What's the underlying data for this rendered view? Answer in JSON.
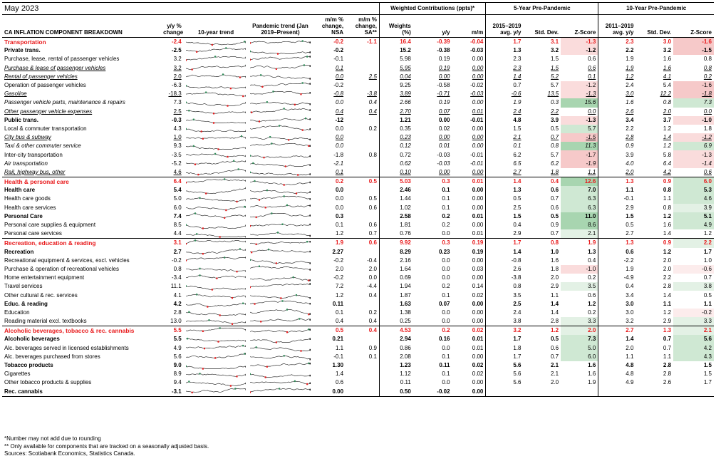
{
  "title": "May 2023",
  "groups": {
    "weighted": "Weighted Contributions (ppts)*",
    "five": "5-Year Pre-Pandemic",
    "ten": "10-Year Pre-Pandemic"
  },
  "headers": {
    "component": "CA INFLATION COMPONENT BREAKDOWN",
    "yy": "y/y % change",
    "trend10": "10-year trend",
    "pandemic": "Pandemic trend (Jan 2019–Present)",
    "mm_nsa": "m/m % change, NSA",
    "mm_sa": "m/m % change, SA**",
    "weights": "Weights (%)",
    "w_yy": "y/y",
    "w_mm": "m/m",
    "avg5": "2015–2019 avg. y/y",
    "sd5": "Std. Dev.",
    "z5": "Z-Score",
    "avg10": "2011–2019 avg. y/y",
    "sd10": "Std. Dev.",
    "z10": "Z-Score"
  },
  "colors": {
    "red": "#e8191b",
    "green": "#2e8b57",
    "z_pos_light": "#e6f3e8",
    "z_pos_dark": "#7fc28c",
    "z_neg_light": "#fbe3e3",
    "z_neg_dark": "#f3a7a7"
  },
  "rows": [
    {
      "label": "Transportation",
      "style": "cat",
      "yy": "-2.4",
      "nsa": "-0.2",
      "sa": "-1.1",
      "w": "16.4",
      "wyy": "-0.39",
      "wmm": "-0.04",
      "a5": "1.7",
      "s5": "3.1",
      "z5": "-1.3",
      "a10": "2.3",
      "s10": "3.0",
      "z10": "-1.6",
      "z5v": -1.3,
      "z10v": -1.6
    },
    {
      "label": "Private trans.",
      "style": "sub",
      "yy": "-2.5",
      "nsa": "-0.2",
      "sa": "",
      "w": "15.2",
      "wyy": "-0.38",
      "wmm": "-0.03",
      "a5": "1.3",
      "s5": "3.2",
      "z5": "-1.2",
      "a10": "2.2",
      "s10": "3.2",
      "z10": "-1.5",
      "z5v": -1.2,
      "z10v": -1.5
    },
    {
      "label": "Purchase, lease, rental of passenger vehicles",
      "style": "",
      "yy": "3.2",
      "nsa": "-0.1",
      "sa": "",
      "w": "5.98",
      "wyy": "0.19",
      "wmm": "0.00",
      "a5": "2.3",
      "s5": "1.5",
      "z5": "0.6",
      "a10": "1.9",
      "s10": "1.6",
      "z10": "0.8",
      "z5v": 0.6,
      "z10v": 0.8
    },
    {
      "label": "Purchase & lease of passenger vehicles",
      "style": "itul",
      "yy": "3.2",
      "nsa": "0.1",
      "sa": "",
      "w": "5.95",
      "wyy": "0.19",
      "wmm": "0.00",
      "a5": "2.3",
      "s5": "1.5",
      "z5": "0.6",
      "a10": "1.9",
      "s10": "1.6",
      "z10": "0.8",
      "z5v": 0.6,
      "z10v": 0.8
    },
    {
      "label": "Rental of passenger vehicles",
      "style": "itul",
      "yy": "2.0",
      "nsa": "0.0",
      "sa": "2.5",
      "w": "0.04",
      "wyy": "0.00",
      "wmm": "0.00",
      "a5": "1.4",
      "s5": "5.2",
      "z5": "0.1",
      "a10": "1.2",
      "s10": "4.1",
      "z10": "0.2",
      "z5v": 0.1,
      "z10v": 0.2
    },
    {
      "label": "Operation of passenger vehicles",
      "style": "",
      "yy": "-6.3",
      "nsa": "-0.2",
      "sa": "",
      "w": "9.25",
      "wyy": "-0.58",
      "wmm": "-0.02",
      "a5": "0.7",
      "s5": "5.7",
      "z5": "-1.2",
      "a10": "2.4",
      "s10": "5.4",
      "z10": "-1.6",
      "z5v": -1.2,
      "z10v": -1.6
    },
    {
      "label": "Gasoline",
      "style": "itul",
      "yy": "-18.3",
      "nsa": "-0.8",
      "sa": "-3.8",
      "w": "3.89",
      "wyy": "-0.71",
      "wmm": "-0.03",
      "a5": "-0.6",
      "s5": "13.5",
      "z5": "-1.3",
      "a10": "3.0",
      "s10": "12.2",
      "z10": "-1.8",
      "z5v": -1.3,
      "z10v": -1.8
    },
    {
      "label": "Passenger vehicle parts, maintenance & repairs",
      "style": "it",
      "yy": "7.3",
      "nsa": "0.0",
      "sa": "0.4",
      "w": "2.66",
      "wyy": "0.19",
      "wmm": "0.00",
      "a5": "1.9",
      "s5": "0.3",
      "z5": "15.6",
      "a10": "1.6",
      "s10": "0.8",
      "z10": "7.3",
      "z5v": 15.6,
      "z10v": 7.3
    },
    {
      "label": "Other passenger vehicle expenses",
      "style": "itul",
      "yy": "2.5",
      "nsa": "0.4",
      "sa": "0.4",
      "w": "2.70",
      "wyy": "0.07",
      "wmm": "0.01",
      "a5": "2.4",
      "s5": "2.2",
      "z5": "0.0",
      "a10": "2.6",
      "s10": "2.0",
      "z10": "0.0",
      "z5v": 0.0,
      "z10v": 0.0
    },
    {
      "label": "Public trans.",
      "style": "sub",
      "yy": "-0.3",
      "nsa": "-12",
      "sa": "",
      "w": "1.21",
      "wyy": "0.00",
      "wmm": "-0.01",
      "a5": "4.8",
      "s5": "3.9",
      "z5": "-1.3",
      "a10": "3.4",
      "s10": "3.7",
      "z10": "-1.0",
      "z5v": -1.3,
      "z10v": -1.0
    },
    {
      "label": "Local & commuter transportation",
      "style": "",
      "yy": "4.3",
      "nsa": "0.0",
      "sa": "0.2",
      "w": "0.35",
      "wyy": "0.02",
      "wmm": "0.00",
      "a5": "1.5",
      "s5": "0.5",
      "z5": "5.7",
      "a10": "2.2",
      "s10": "1.2",
      "z10": "1.8",
      "z5v": 5.7,
      "z10v": 1.8
    },
    {
      "label": "City bus & subway",
      "style": "itul",
      "yy": "1.0",
      "nsa": "0.0",
      "sa": "",
      "w": "0.23",
      "wyy": "0.00",
      "wmm": "0.00",
      "a5": "2.1",
      "s5": "0.7",
      "z5": "-1.5",
      "a10": "2.8",
      "s10": "1.4",
      "z10": "-1.2",
      "z5v": -1.5,
      "z10v": -1.2
    },
    {
      "label": "Taxi & other commuter service",
      "style": "it",
      "yy": "9.3",
      "nsa": "0.0",
      "sa": "",
      "w": "0.12",
      "wyy": "0.01",
      "wmm": "0.00",
      "a5": "0.1",
      "s5": "0.8",
      "z5": "11.3",
      "a10": "0.9",
      "s10": "1.2",
      "z10": "6.9",
      "z5v": 11.3,
      "z10v": 6.9
    },
    {
      "label": "Inter-city transportation",
      "style": "",
      "yy": "-3.5",
      "nsa": "-1.8",
      "sa": "0.8",
      "w": "0.72",
      "wyy": "-0.03",
      "wmm": "-0.01",
      "a5": "6.2",
      "s5": "5.7",
      "z5": "-1.7",
      "a10": "3.9",
      "s10": "5.8",
      "z10": "-1.3",
      "z5v": -1.7,
      "z10v": -1.3
    },
    {
      "label": "Air transportation",
      "style": "it",
      "yy": "-5.2",
      "nsa": "-2.1",
      "sa": "",
      "w": "0.62",
      "wyy": "-0.03",
      "wmm": "-0.01",
      "a5": "6.5",
      "s5": "6.2",
      "z5": "-1.9",
      "a10": "4.0",
      "s10": "6.4",
      "z10": "-1.4",
      "z5v": -1.9,
      "z10v": -1.4
    },
    {
      "label": "Rail, highway bus, other",
      "style": "itul",
      "yy": "4.6",
      "nsa": "0.1",
      "sa": "",
      "w": "0.10",
      "wyy": "0.00",
      "wmm": "0.00",
      "a5": "2.7",
      "s5": "1.8",
      "z5": "1.1",
      "a10": "2.0",
      "s10": "4.2",
      "z10": "0.6",
      "z5v": 1.1,
      "z10v": 0.6
    },
    {
      "label": "Health & personal care",
      "style": "cat",
      "yy": "6.4",
      "nsa": "0.2",
      "sa": "0.5",
      "w": "5.03",
      "wyy": "0.3",
      "wmm": "0.01",
      "a5": "1.4",
      "s5": "0.4",
      "z5": "12.6",
      "a10": "1.3",
      "s10": "0.9",
      "z10": "6.0",
      "z5v": 12.6,
      "z10v": 6.0
    },
    {
      "label": "Health care",
      "style": "sub",
      "yy": "5.4",
      "nsa": "0.0",
      "sa": "",
      "w": "2.46",
      "wyy": "0.1",
      "wmm": "0.00",
      "a5": "1.3",
      "s5": "0.6",
      "z5": "7.0",
      "a10": "1.1",
      "s10": "0.8",
      "z10": "5.3",
      "z5v": 7.0,
      "z10v": 5.3
    },
    {
      "label": "Health care goods",
      "style": "",
      "yy": "5.0",
      "nsa": "0.0",
      "sa": "0.5",
      "w": "1.44",
      "wyy": "0.1",
      "wmm": "0.00",
      "a5": "0.5",
      "s5": "0.7",
      "z5": "6.3",
      "a10": "-0.1",
      "s10": "1.1",
      "z10": "4.6",
      "z5v": 6.3,
      "z10v": 4.6
    },
    {
      "label": "Health care services",
      "style": "",
      "yy": "6.0",
      "nsa": "0.0",
      "sa": "0.6",
      "w": "1.02",
      "wyy": "0.1",
      "wmm": "0.00",
      "a5": "2.5",
      "s5": "0.6",
      "z5": "6.3",
      "a10": "2.9",
      "s10": "0.8",
      "z10": "3.9",
      "z5v": 6.3,
      "z10v": 3.9
    },
    {
      "label": "Personal Care",
      "style": "sub",
      "yy": "7.4",
      "nsa": "0.3",
      "sa": "",
      "w": "2.58",
      "wyy": "0.2",
      "wmm": "0.01",
      "a5": "1.5",
      "s5": "0.5",
      "z5": "11.0",
      "a10": "1.5",
      "s10": "1.2",
      "z10": "5.1",
      "z5v": 11.0,
      "z10v": 5.1
    },
    {
      "label": "Personal care supplies & equipment",
      "style": "",
      "yy": "8.5",
      "nsa": "0.1",
      "sa": "0.6",
      "w": "1.81",
      "wyy": "0.2",
      "wmm": "0.00",
      "a5": "0.4",
      "s5": "0.9",
      "z5": "8.6",
      "a10": "0.5",
      "s10": "1.6",
      "z10": "4.9",
      "z5v": 8.6,
      "z10v": 4.9
    },
    {
      "label": "Personal care services",
      "style": "",
      "yy": "4.4",
      "nsa": "1.2",
      "sa": "0.7",
      "w": "0.76",
      "wyy": "0.0",
      "wmm": "0.01",
      "a5": "2.9",
      "s5": "0.7",
      "z5": "2.1",
      "a10": "2.7",
      "s10": "1.4",
      "z10": "1.2",
      "z5v": 2.1,
      "z10v": 1.2
    },
    {
      "label": "Recreation, education & reading",
      "style": "cat",
      "yy": "3.1",
      "nsa": "1.9",
      "sa": "0.6",
      "w": "9.92",
      "wyy": "0.3",
      "wmm": "0.19",
      "a5": "1.7",
      "s5": "0.8",
      "z5": "1.9",
      "a10": "1.3",
      "s10": "0.9",
      "z10": "2.2",
      "z5v": 1.9,
      "z10v": 2.2
    },
    {
      "label": "Recreation",
      "style": "sub",
      "yy": "2.7",
      "nsa": "2.27",
      "sa": "",
      "w": "8.29",
      "wyy": "0.23",
      "wmm": "0.19",
      "a5": "1.4",
      "s5": "1.0",
      "z5": "1.3",
      "a10": "0.6",
      "s10": "1.2",
      "z10": "1.7",
      "z5v": 1.3,
      "z10v": 1.7
    },
    {
      "label": "Recreational equipment & services, excl. vehicles",
      "style": "",
      "yy": "-0.2",
      "nsa": "-0.2",
      "sa": "-0.4",
      "w": "2.16",
      "wyy": "0.0",
      "wmm": "0.00",
      "a5": "-0.8",
      "s5": "1.6",
      "z5": "0.4",
      "a10": "-2.2",
      "s10": "2.0",
      "z10": "1.0",
      "z5v": 0.4,
      "z10v": 1.0
    },
    {
      "label": "Purchase & operation of recreational vehicles",
      "style": "",
      "yy": "0.8",
      "nsa": "2.0",
      "sa": "2.0",
      "w": "1.64",
      "wyy": "0.0",
      "wmm": "0.03",
      "a5": "2.6",
      "s5": "1.8",
      "z5": "-1.0",
      "a10": "1.9",
      "s10": "2.0",
      "z10": "-0.6",
      "z5v": -1.0,
      "z10v": -0.6
    },
    {
      "label": "Home entertainment equipment",
      "style": "",
      "yy": "-3.4",
      "nsa": "-0.2",
      "sa": "0.0",
      "w": "0.69",
      "wyy": "0.0",
      "wmm": "0.00",
      "a5": "-3.8",
      "s5": "2.0",
      "z5": "0.2",
      "a10": "-4.9",
      "s10": "2.2",
      "z10": "0.7",
      "z5v": 0.2,
      "z10v": 0.7
    },
    {
      "label": "Travel services",
      "style": "",
      "yy": "11.1",
      "nsa": "7.2",
      "sa": "-4.4",
      "w": "1.94",
      "wyy": "0.2",
      "wmm": "0.14",
      "a5": "0.8",
      "s5": "2.9",
      "z5": "3.5",
      "a10": "0.4",
      "s10": "2.8",
      "z10": "3.8",
      "z5v": 3.5,
      "z10v": 3.8
    },
    {
      "label": "Other cultural & rec. services",
      "style": "",
      "yy": "4.1",
      "nsa": "1.2",
      "sa": "0.4",
      "w": "1.87",
      "wyy": "0.1",
      "wmm": "0.02",
      "a5": "3.5",
      "s5": "1.1",
      "z5": "0.6",
      "a10": "3.4",
      "s10": "1.4",
      "z10": "0.5",
      "z5v": 0.6,
      "z10v": 0.5
    },
    {
      "label": "Educ. & reading",
      "style": "sub",
      "yy": "4.2",
      "nsa": "0.11",
      "sa": "",
      "w": "1.63",
      "wyy": "0.07",
      "wmm": "0.00",
      "a5": "2.5",
      "s5": "1.4",
      "z5": "1.2",
      "a10": "3.0",
      "s10": "1.1",
      "z10": "1.1",
      "z5v": 1.2,
      "z10v": 1.1
    },
    {
      "label": "Education",
      "style": "",
      "yy": "2.8",
      "nsa": "0.1",
      "sa": "0.2",
      "w": "1.38",
      "wyy": "0.0",
      "wmm": "0.00",
      "a5": "2.4",
      "s5": "1.4",
      "z5": "0.2",
      "a10": "3.0",
      "s10": "1.2",
      "z10": "-0.2",
      "z5v": 0.2,
      "z10v": -0.2
    },
    {
      "label": "Reading material excl. textbooks",
      "style": "",
      "yy": "13.0",
      "nsa": "0.4",
      "sa": "0.4",
      "w": "0.25",
      "wyy": "0.0",
      "wmm": "0.00",
      "a5": "3.8",
      "s5": "2.8",
      "z5": "3.3",
      "a10": "3.2",
      "s10": "2.9",
      "z10": "3.3",
      "z5v": 3.3,
      "z10v": 3.3
    },
    {
      "label": "Alcoholic beverages, tobacco & rec. cannabis",
      "style": "cat",
      "yy": "5.5",
      "nsa": "0.5",
      "sa": "0.4",
      "w": "4.53",
      "wyy": "0.2",
      "wmm": "0.02",
      "a5": "3.2",
      "s5": "1.2",
      "z5": "2.0",
      "a10": "2.7",
      "s10": "1.3",
      "z10": "2.1",
      "z5v": 2.0,
      "z10v": 2.1
    },
    {
      "label": "Alcoholic beverages",
      "style": "sub",
      "yy": "5.5",
      "nsa": "0.21",
      "sa": "",
      "w": "2.94",
      "wyy": "0.16",
      "wmm": "0.01",
      "a5": "1.7",
      "s5": "0.5",
      "z5": "7.3",
      "a10": "1.4",
      "s10": "0.7",
      "z10": "5.6",
      "z5v": 7.3,
      "z10v": 5.6
    },
    {
      "label": "Alc. beverages served in licensed establishments",
      "style": "",
      "yy": "4.9",
      "nsa": "1.1",
      "sa": "0.9",
      "w": "0.86",
      "wyy": "0.0",
      "wmm": "0.01",
      "a5": "1.8",
      "s5": "0.6",
      "z5": "5.0",
      "a10": "2.0",
      "s10": "0.7",
      "z10": "4.2",
      "z5v": 5.0,
      "z10v": 4.2
    },
    {
      "label": "Alc. beverages purchased from stores",
      "style": "",
      "yy": "5.6",
      "nsa": "-0.1",
      "sa": "0.1",
      "w": "2.08",
      "wyy": "0.1",
      "wmm": "0.00",
      "a5": "1.7",
      "s5": "0.7",
      "z5": "6.0",
      "a10": "1.1",
      "s10": "1.1",
      "z10": "4.3",
      "z5v": 6.0,
      "z10v": 4.3
    },
    {
      "label": "Tobacco products",
      "style": "sub",
      "yy": "9.0",
      "nsa": "1.30",
      "sa": "",
      "w": "1.23",
      "wyy": "0.11",
      "wmm": "0.02",
      "a5": "5.6",
      "s5": "2.1",
      "z5": "1.6",
      "a10": "4.8",
      "s10": "2.8",
      "z10": "1.5",
      "z5v": 1.6,
      "z10v": 1.5
    },
    {
      "label": "Cigarettes",
      "style": "",
      "yy": "8.9",
      "nsa": "1.4",
      "sa": "",
      "w": "1.12",
      "wyy": "0.1",
      "wmm": "0.02",
      "a5": "5.6",
      "s5": "2.1",
      "z5": "1.6",
      "a10": "4.8",
      "s10": "2.8",
      "z10": "1.5",
      "z5v": 1.6,
      "z10v": 1.5
    },
    {
      "label": "Other tobacco products & supplies",
      "style": "",
      "yy": "9.4",
      "nsa": "0.6",
      "sa": "",
      "w": "0.11",
      "wyy": "0.0",
      "wmm": "0.00",
      "a5": "5.6",
      "s5": "2.0",
      "z5": "1.9",
      "a10": "4.9",
      "s10": "2.6",
      "z10": "1.7",
      "z5v": 1.9,
      "z10v": 1.7
    },
    {
      "label": "Rec. cannabis",
      "style": "sub",
      "yy": "-3.1",
      "nsa": "0.00",
      "sa": "",
      "w": "0.50",
      "wyy": "-0.02",
      "wmm": "0.00",
      "a5": "",
      "s5": "",
      "z5": "",
      "a10": "",
      "s10": "",
      "z10": "",
      "z5v": null,
      "z10v": null
    }
  ],
  "footnotes": [
    "*Number may not add due to rounding",
    "** Only available for components that are tracked on a seasonally adjusted basis.",
    "Sources: Scotiabank Economics, Statistics Canada."
  ]
}
